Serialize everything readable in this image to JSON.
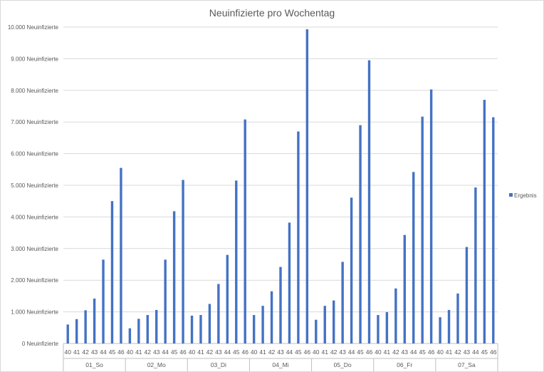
{
  "chart_data": {
    "type": "bar",
    "title": "Neuinfizierte pro Wochentag",
    "y_unit": "Neuinfizierte",
    "ylim": [
      0,
      10000
    ],
    "y_ticks": [
      0,
      1000,
      2000,
      3000,
      4000,
      5000,
      6000,
      7000,
      8000,
      9000,
      10000
    ],
    "y_tick_labels": [
      "0 Neuinfizierte",
      "1.000 Neuinfizierte",
      "2.000 Neuinfizierte",
      "3.000 Neuinfizierte",
      "4.000 Neuinfizierte",
      "5.000 Neuinfizierte",
      "6.000 Neuinfizierte",
      "7.000 Neuinfizierte",
      "8.000 Neuinfizierte",
      "9.000 Neuinfizierte",
      "10.000 Neuinfizierte"
    ],
    "grid": true,
    "legend_position": "right",
    "series_color": "#4472c4",
    "series": [
      {
        "name": "Ergebnis",
        "groups": [
          {
            "label": "01_So",
            "weeks": [
              "40",
              "41",
              "42",
              "43",
              "44",
              "45",
              "46"
            ],
            "values": [
              600,
              770,
              1050,
              1420,
              2650,
              4500,
              5550
            ]
          },
          {
            "label": "02_Mo",
            "weeks": [
              "40",
              "41",
              "42",
              "43",
              "44",
              "45",
              "46"
            ],
            "values": [
              480,
              780,
              900,
              1060,
              2650,
              4180,
              5170
            ]
          },
          {
            "label": "03_Di",
            "weeks": [
              "40",
              "41",
              "42",
              "43",
              "44",
              "45",
              "46"
            ],
            "values": [
              880,
              900,
              1250,
              1880,
              2800,
              5150,
              7080
            ]
          },
          {
            "label": "04_Mi",
            "weeks": [
              "40",
              "41",
              "42",
              "43",
              "44",
              "45",
              "46"
            ],
            "values": [
              900,
              1190,
              1650,
              2420,
              3820,
              6700,
              9930
            ]
          },
          {
            "label": "05_Do",
            "weeks": [
              "40",
              "41",
              "42",
              "43",
              "44",
              "45",
              "46"
            ],
            "values": [
              750,
              1190,
              1360,
              2580,
              4610,
              6900,
              8950
            ]
          },
          {
            "label": "06_Fr",
            "weeks": [
              "40",
              "41",
              "42",
              "43",
              "44",
              "45",
              "46"
            ],
            "values": [
              900,
              990,
              1740,
              3430,
              5420,
              7170,
              8030
            ]
          },
          {
            "label": "07_Sa",
            "weeks": [
              "40",
              "41",
              "42",
              "43",
              "44",
              "45",
              "46"
            ],
            "values": [
              830,
              1060,
              1580,
              3050,
              4930,
              7700,
              7150
            ]
          }
        ]
      }
    ]
  }
}
